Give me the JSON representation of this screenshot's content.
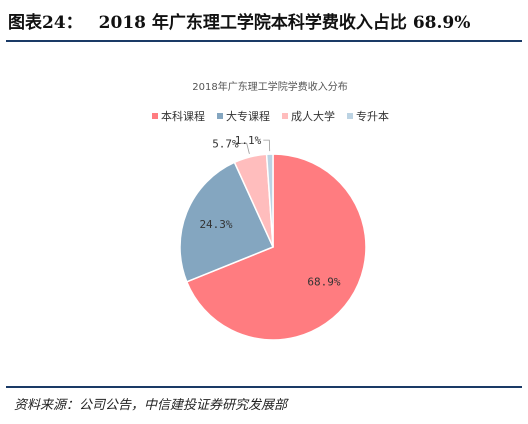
{
  "figure": {
    "label": "图表24：",
    "heading": "2018 年广东理工学院本科学费收入占比 68.9%"
  },
  "chart_data": {
    "type": "pie",
    "title": "2018年广东理工学院学费收入分布",
    "slices": [
      {
        "name": "本科课程",
        "value": 68.9,
        "label": "68.9%",
        "color": "#ff7c80"
      },
      {
        "name": "大专课程",
        "value": 24.3,
        "label": "24.3%",
        "color": "#84a6c0"
      },
      {
        "name": "成人大学",
        "value": 5.7,
        "label": "5.7%",
        "color": "#ffbdbd"
      },
      {
        "name": "专升本",
        "value": 1.1,
        "label": "1.1%",
        "color": "#bcd3e3"
      }
    ],
    "legend": {
      "position": "top"
    },
    "start_angle": "12 o'clock",
    "direction": "clockwise"
  },
  "source": "资料来源：公司公告，中信建投证券研究发展部"
}
